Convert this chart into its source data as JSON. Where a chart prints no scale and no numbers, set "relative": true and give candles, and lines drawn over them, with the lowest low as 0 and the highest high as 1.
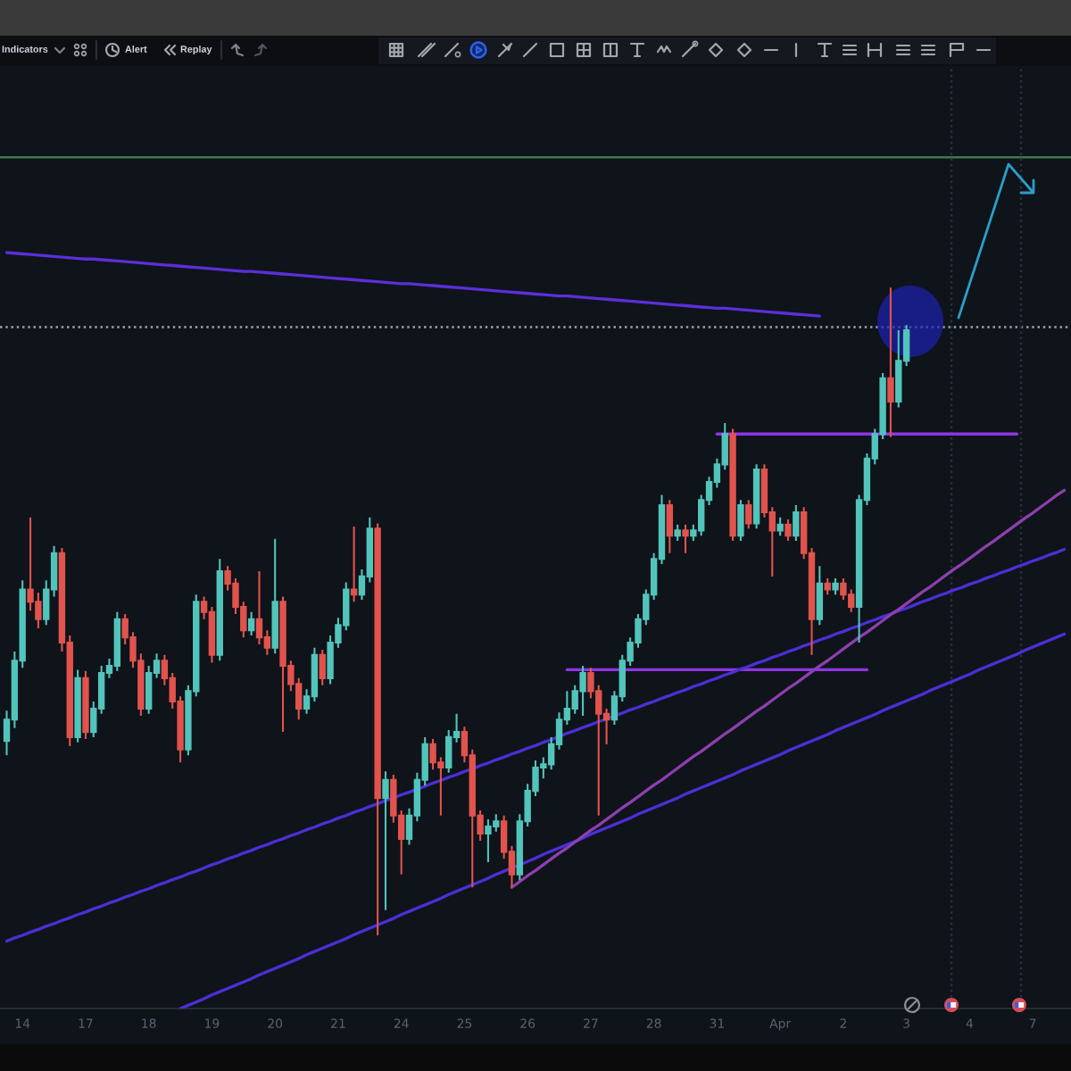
{
  "chart_data": {
    "type": "candlestick",
    "relative": true,
    "categories": [
      null,
      null,
      "14",
      null,
      null,
      null,
      null,
      null,
      null,
      null,
      "17",
      null,
      null,
      null,
      null,
      null,
      null,
      null,
      "18",
      null,
      null,
      null,
      null,
      null,
      null,
      null,
      "19",
      null,
      null,
      null,
      null,
      null,
      null,
      null,
      "20",
      null,
      null,
      null,
      null,
      null,
      null,
      null,
      "21",
      null,
      null,
      null,
      null,
      null,
      null,
      null,
      "24",
      null,
      null,
      null,
      null,
      null,
      null,
      null,
      "25",
      null,
      null,
      null,
      null,
      null,
      null,
      null,
      "26",
      null,
      null,
      null,
      null,
      null,
      null,
      null,
      "27",
      null,
      null,
      null,
      null,
      null,
      null,
      null,
      "28",
      null,
      null,
      null,
      null,
      null,
      null,
      null,
      "31",
      null,
      null,
      null,
      null,
      null,
      null,
      null,
      "Apr",
      null,
      null,
      null,
      null,
      null,
      null,
      null,
      "2",
      null,
      null,
      null,
      null,
      null,
      null,
      null,
      "3",
      null,
      null,
      null,
      null,
      null,
      null,
      null,
      "4",
      null,
      null,
      null,
      null,
      null,
      null,
      null,
      "7",
      null,
      null,
      null,
      null
    ],
    "ohlc": [
      [
        0.3,
        0.347,
        0.278,
        0.333
      ],
      [
        0.333,
        0.438,
        0.32,
        0.424
      ],
      [
        0.424,
        0.548,
        0.413,
        0.534
      ],
      [
        0.534,
        0.645,
        0.501,
        0.515
      ],
      [
        0.515,
        0.529,
        0.474,
        0.488
      ],
      [
        0.488,
        0.548,
        0.479,
        0.534
      ],
      [
        0.534,
        0.601,
        0.523,
        0.59
      ],
      [
        0.59,
        0.598,
        0.438,
        0.452
      ],
      [
        0.452,
        0.463,
        0.292,
        0.306
      ],
      [
        0.306,
        0.41,
        0.298,
        0.397
      ],
      [
        0.397,
        0.408,
        0.303,
        0.314
      ],
      [
        0.314,
        0.361,
        0.306,
        0.35
      ],
      [
        0.35,
        0.416,
        0.342,
        0.405
      ],
      [
        0.405,
        0.427,
        0.397,
        0.416
      ],
      [
        0.416,
        0.499,
        0.408,
        0.488
      ],
      [
        0.488,
        0.496,
        0.449,
        0.46
      ],
      [
        0.46,
        0.468,
        0.413,
        0.424
      ],
      [
        0.424,
        0.435,
        0.339,
        0.35
      ],
      [
        0.35,
        0.416,
        0.342,
        0.405
      ],
      [
        0.405,
        0.435,
        0.397,
        0.424
      ],
      [
        0.424,
        0.433,
        0.386,
        0.397
      ],
      [
        0.397,
        0.405,
        0.35,
        0.361
      ],
      [
        0.361,
        0.369,
        0.267,
        0.287
      ],
      [
        0.287,
        0.386,
        0.278,
        0.377
      ],
      [
        0.377,
        0.526,
        0.369,
        0.515
      ],
      [
        0.515,
        0.523,
        0.488,
        0.499
      ],
      [
        0.499,
        0.507,
        0.421,
        0.433
      ],
      [
        0.433,
        0.581,
        0.424,
        0.562
      ],
      [
        0.562,
        0.57,
        0.532,
        0.543
      ],
      [
        0.543,
        0.551,
        0.496,
        0.507
      ],
      [
        0.507,
        0.515,
        0.46,
        0.471
      ],
      [
        0.471,
        0.499,
        0.463,
        0.488
      ],
      [
        0.488,
        0.562,
        0.449,
        0.46
      ],
      [
        0.46,
        0.471,
        0.433,
        0.444
      ],
      [
        0.444,
        0.612,
        0.435,
        0.515
      ],
      [
        0.515,
        0.523,
        0.314,
        0.416
      ],
      [
        0.416,
        0.424,
        0.377,
        0.388
      ],
      [
        0.388,
        0.397,
        0.333,
        0.35
      ],
      [
        0.35,
        0.38,
        0.342,
        0.369
      ],
      [
        0.369,
        0.444,
        0.361,
        0.433
      ],
      [
        0.433,
        0.441,
        0.386,
        0.397
      ],
      [
        0.397,
        0.463,
        0.388,
        0.452
      ],
      [
        0.452,
        0.49,
        0.444,
        0.479
      ],
      [
        0.479,
        0.545,
        0.471,
        0.534
      ],
      [
        0.534,
        0.631,
        0.515,
        0.526
      ],
      [
        0.526,
        0.565,
        0.518,
        0.554
      ],
      [
        0.554,
        0.645,
        0.545,
        0.628
      ],
      [
        0.628,
        0.636,
        0,
        0.212
      ],
      [
        0.212,
        0.253,
        0.039,
        0.24
      ],
      [
        0.24,
        0.248,
        0.174,
        0.185
      ],
      [
        0.185,
        0.193,
        0.094,
        0.149
      ],
      [
        0.149,
        0.196,
        0.14,
        0.185
      ],
      [
        0.185,
        0.251,
        0.176,
        0.24
      ],
      [
        0.24,
        0.306,
        0.231,
        0.295
      ],
      [
        0.295,
        0.303,
        0.256,
        0.267
      ],
      [
        0.267,
        0.275,
        0.185,
        0.259
      ],
      [
        0.259,
        0.317,
        0.251,
        0.306
      ],
      [
        0.306,
        0.342,
        0.298,
        0.314
      ],
      [
        0.314,
        0.322,
        0.267,
        0.278
      ],
      [
        0.278,
        0.287,
        0.074,
        0.185
      ],
      [
        0.185,
        0.193,
        0.146,
        0.157
      ],
      [
        0.157,
        0.179,
        0.113,
        0.168
      ],
      [
        0.168,
        0.187,
        0.16,
        0.176
      ],
      [
        0.176,
        0.185,
        0.118,
        0.129
      ],
      [
        0.129,
        0.138,
        0.074,
        0.094
      ],
      [
        0.094,
        0.187,
        0.085,
        0.176
      ],
      [
        0.176,
        0.234,
        0.168,
        0.223
      ],
      [
        0.223,
        0.27,
        0.215,
        0.259
      ],
      [
        0.259,
        0.275,
        0.242,
        0.264
      ],
      [
        0.264,
        0.306,
        0.256,
        0.295
      ],
      [
        0.295,
        0.344,
        0.287,
        0.333
      ],
      [
        0.333,
        0.377,
        0.325,
        0.35
      ],
      [
        0.35,
        0.386,
        0.342,
        0.377
      ],
      [
        0.377,
        0.416,
        0.339,
        0.405
      ],
      [
        0.405,
        0.413,
        0.366,
        0.377
      ],
      [
        0.377,
        0.386,
        0.185,
        0.342
      ],
      [
        0.342,
        0.35,
        0.295,
        0.333
      ],
      [
        0.333,
        0.377,
        0.325,
        0.369
      ],
      [
        0.369,
        0.433,
        0.361,
        0.424
      ],
      [
        0.424,
        0.46,
        0.416,
        0.452
      ],
      [
        0.452,
        0.496,
        0.444,
        0.488
      ],
      [
        0.488,
        0.534,
        0.479,
        0.526
      ],
      [
        0.526,
        0.59,
        0.518,
        0.581
      ],
      [
        0.581,
        0.68,
        0.573,
        0.664
      ],
      [
        0.664,
        0.672,
        0.59,
        0.617
      ],
      [
        0.617,
        0.634,
        0.609,
        0.625
      ],
      [
        0.625,
        0.634,
        0.59,
        0.617
      ],
      [
        0.617,
        0.634,
        0.609,
        0.625
      ],
      [
        0.625,
        0.68,
        0.617,
        0.672
      ],
      [
        0.672,
        0.708,
        0.664,
        0.7
      ],
      [
        0.7,
        0.736,
        0.691,
        0.727
      ],
      [
        0.727,
        0.791,
        0.719,
        0.774
      ],
      [
        0.774,
        0.782,
        0.609,
        0.617
      ],
      [
        0.617,
        0.672,
        0.609,
        0.664
      ],
      [
        0.664,
        0.672,
        0.628,
        0.636
      ],
      [
        0.636,
        0.727,
        0.628,
        0.719
      ],
      [
        0.719,
        0.727,
        0.645,
        0.653
      ],
      [
        0.653,
        0.661,
        0.554,
        0.625
      ],
      [
        0.625,
        0.645,
        0.617,
        0.634
      ],
      [
        0.634,
        0.642,
        0.609,
        0.617
      ],
      [
        0.617,
        0.664,
        0.609,
        0.653
      ],
      [
        0.653,
        0.661,
        0.581,
        0.59
      ],
      [
        0.59,
        0.598,
        0.433,
        0.488
      ],
      [
        0.488,
        0.57,
        0.479,
        0.543
      ],
      [
        0.543,
        0.551,
        0.526,
        0.534
      ],
      [
        0.534,
        0.551,
        0.526,
        0.543
      ],
      [
        0.543,
        0.551,
        0.518,
        0.526
      ],
      [
        0.526,
        0.534,
        0.499,
        0.507
      ],
      [
        0.507,
        0.68,
        0.452,
        0.672
      ],
      [
        0.672,
        0.744,
        0.664,
        0.736
      ],
      [
        0.736,
        0.782,
        0.727,
        0.774
      ],
      [
        0.774,
        0.868,
        0.766,
        0.86
      ],
      [
        0.86,
        1,
        0.769,
        0.824
      ],
      [
        0.824,
        0.934,
        0.815,
        0.887
      ],
      [
        0.887,
        0.942,
        0.879,
        0.934
      ],
      null,
      null,
      null,
      null,
      null,
      null,
      null,
      null,
      null,
      null,
      null,
      null,
      null,
      null,
      null,
      null,
      null,
      null,
      null,
      null
    ],
    "series": [
      {
        "type": "line",
        "color": "#5b2fd9",
        "values": [
          1.054,
          1.053,
          1.052,
          1.051,
          1.05,
          1.049,
          1.048,
          1.047,
          1.046,
          1.045,
          1.044,
          1.044,
          1.043,
          1.042,
          1.041,
          1.04,
          1.039,
          1.038,
          1.037,
          1.036,
          1.035,
          1.034,
          1.033,
          1.032,
          1.031,
          1.03,
          1.029,
          1.028,
          1.027,
          1.026,
          1.025,
          1.025,
          1.024,
          1.023,
          1.022,
          1.021,
          1.02,
          1.019,
          1.018,
          1.017,
          1.016,
          1.015,
          1.014,
          1.013,
          1.012,
          1.011,
          1.01,
          1.009,
          1.008,
          1.007,
          1.006,
          1.006,
          1.005,
          1.004,
          1.003,
          1.002,
          1.001,
          1.0,
          0.999,
          0.998,
          0.997,
          0.996,
          0.995,
          0.994,
          0.993,
          0.992,
          0.991,
          0.99,
          0.989,
          0.988,
          0.987,
          0.987,
          0.986,
          0.985,
          0.984,
          0.983,
          0.982,
          0.981,
          0.98,
          0.979,
          0.978,
          0.977,
          0.976,
          0.975,
          0.974,
          0.973,
          0.972,
          0.971,
          0.97,
          0.969,
          0.968,
          0.968,
          0.967,
          0.966,
          0.965,
          0.964,
          0.963,
          0.962,
          0.961,
          0.96,
          0.959,
          0.958,
          0.957,
          0.956,
          null,
          null,
          null,
          null,
          null,
          null,
          null,
          null,
          null,
          null,
          null,
          null,
          null,
          null,
          null,
          null,
          null,
          null,
          null,
          null,
          null,
          null,
          null,
          null,
          null,
          null,
          null,
          null,
          null,
          null,
          null
        ]
      },
      {
        "type": "line",
        "color": "#8e35e6",
        "values": [
          null,
          null,
          null,
          null,
          null,
          null,
          null,
          null,
          null,
          null,
          null,
          null,
          null,
          null,
          null,
          null,
          null,
          null,
          null,
          null,
          null,
          null,
          null,
          null,
          null,
          null,
          null,
          null,
          null,
          null,
          null,
          null,
          null,
          null,
          null,
          null,
          null,
          null,
          null,
          null,
          null,
          null,
          null,
          null,
          null,
          null,
          null,
          null,
          null,
          null,
          null,
          null,
          null,
          null,
          null,
          null,
          null,
          null,
          null,
          null,
          null,
          null,
          null,
          null,
          null,
          null,
          null,
          null,
          null,
          null,
          null,
          null,
          null,
          null,
          null,
          null,
          null,
          null,
          null,
          null,
          null,
          null,
          null,
          null,
          null,
          null,
          null,
          null,
          null,
          null,
          0.774,
          0.774,
          0.774,
          0.774,
          0.774,
          0.774,
          0.774,
          0.774,
          0.774,
          0.774,
          0.774,
          0.774,
          0.774,
          0.774,
          0.774,
          0.774,
          0.774,
          0.774,
          0.774,
          0.774,
          0.774,
          0.774,
          0.774,
          0.774,
          0.774,
          0.774,
          0.774,
          0.774,
          0.774,
          0.774,
          0.774,
          0.774,
          0.774,
          0.774,
          0.774,
          0.774,
          0.774,
          0.774,
          0.774,
          null,
          null,
          null,
          null,
          null,
          null
        ]
      },
      {
        "type": "line",
        "color": "#8e35e6",
        "values": [
          null,
          null,
          null,
          null,
          null,
          null,
          null,
          null,
          null,
          null,
          null,
          null,
          null,
          null,
          null,
          null,
          null,
          null,
          null,
          null,
          null,
          null,
          null,
          null,
          null,
          null,
          null,
          null,
          null,
          null,
          null,
          null,
          null,
          null,
          null,
          null,
          null,
          null,
          null,
          null,
          null,
          null,
          null,
          null,
          null,
          null,
          null,
          null,
          null,
          null,
          null,
          null,
          null,
          null,
          null,
          null,
          null,
          null,
          null,
          null,
          null,
          null,
          null,
          null,
          null,
          null,
          null,
          null,
          null,
          null,
          null,
          0.41,
          0.41,
          0.41,
          0.41,
          0.41,
          0.41,
          0.41,
          0.41,
          0.41,
          0.41,
          0.41,
          0.41,
          0.41,
          0.41,
          0.41,
          0.41,
          0.41,
          0.41,
          0.41,
          0.41,
          0.41,
          0.41,
          0.41,
          0.41,
          0.41,
          0.41,
          0.41,
          0.41,
          0.41,
          0.41,
          0.41,
          0.41,
          0.41,
          0.41,
          0.41,
          0.41,
          0.41,
          0.41,
          0.41,
          null,
          null,
          null,
          null,
          null,
          null,
          null,
          null,
          null,
          null,
          null,
          null,
          null,
          null,
          null,
          null,
          null,
          null,
          null,
          null,
          null,
          null,
          null,
          null,
          null
        ]
      },
      {
        "type": "line",
        "color": "#4b2fd6",
        "values": [
          -0.009,
          -0.004,
          0.0,
          0.005,
          0.009,
          0.014,
          0.018,
          0.023,
          0.027,
          0.032,
          0.036,
          0.041,
          0.045,
          0.05,
          0.054,
          0.059,
          0.063,
          0.068,
          0.072,
          0.077,
          0.081,
          0.086,
          0.09,
          0.095,
          0.099,
          0.104,
          0.109,
          0.113,
          0.118,
          0.122,
          0.127,
          0.131,
          0.136,
          0.14,
          0.145,
          0.149,
          0.154,
          0.158,
          0.163,
          0.167,
          0.172,
          0.176,
          0.181,
          0.185,
          0.19,
          0.194,
          0.199,
          0.203,
          0.208,
          0.212,
          0.217,
          0.221,
          0.226,
          0.23,
          0.235,
          0.239,
          0.244,
          0.248,
          0.253,
          0.257,
          0.262,
          0.266,
          0.271,
          0.275,
          0.28,
          0.284,
          0.289,
          0.293,
          0.298,
          0.302,
          0.307,
          0.312,
          0.316,
          0.321,
          0.325,
          0.33,
          0.334,
          0.339,
          0.343,
          0.348,
          0.352,
          0.357,
          0.361,
          0.366,
          0.37,
          0.375,
          0.379,
          0.384,
          0.388,
          0.393,
          0.397,
          0.402,
          0.406,
          0.411,
          0.415,
          0.42,
          0.424,
          0.429,
          0.433,
          0.438,
          0.442,
          0.447,
          0.451,
          0.456,
          0.46,
          0.465,
          0.469,
          0.474,
          0.478,
          0.483,
          0.487,
          0.492,
          0.496,
          0.501,
          0.505,
          0.51,
          0.515,
          0.519,
          0.524,
          0.528,
          0.533,
          0.537,
          0.542,
          0.546,
          0.551,
          0.555,
          0.56,
          0.564,
          0.569,
          0.573,
          0.578,
          0.582,
          0.587,
          0.591,
          0.596
        ]
      },
      {
        "type": "line",
        "color": "#4b2fd6",
        "values": [
          null,
          null,
          null,
          null,
          null,
          null,
          null,
          null,
          null,
          null,
          null,
          null,
          null,
          null,
          null,
          null,
          null,
          null,
          null,
          null,
          null,
          null,
          -0.113,
          -0.108,
          -0.103,
          -0.098,
          -0.092,
          -0.087,
          -0.082,
          -0.077,
          -0.072,
          -0.067,
          -0.061,
          -0.056,
          -0.051,
          -0.046,
          -0.041,
          -0.036,
          -0.03,
          -0.025,
          -0.02,
          -0.015,
          -0.01,
          -0.005,
          0.001,
          0.006,
          0.011,
          0.016,
          0.021,
          0.026,
          0.032,
          0.037,
          0.042,
          0.047,
          0.052,
          0.057,
          0.063,
          0.068,
          0.073,
          0.078,
          0.083,
          0.088,
          0.094,
          0.099,
          0.104,
          0.109,
          0.114,
          0.119,
          0.125,
          0.13,
          0.135,
          0.14,
          0.145,
          0.15,
          0.156,
          0.161,
          0.166,
          0.171,
          0.176,
          0.181,
          0.187,
          0.192,
          0.197,
          0.202,
          0.207,
          0.212,
          0.218,
          0.223,
          0.228,
          0.233,
          0.238,
          0.243,
          0.248,
          0.254,
          0.259,
          0.264,
          0.269,
          0.274,
          0.279,
          0.285,
          0.29,
          0.295,
          0.3,
          0.305,
          0.31,
          0.316,
          0.321,
          0.326,
          0.331,
          0.336,
          0.341,
          0.347,
          0.352,
          0.357,
          0.362,
          0.367,
          0.372,
          0.378,
          0.383,
          0.388,
          0.393,
          0.398,
          0.403,
          0.409,
          0.414,
          0.419,
          0.424,
          0.429,
          0.434,
          0.44,
          0.445,
          0.45,
          0.455,
          0.46,
          0.465
        ]
      },
      {
        "type": "line",
        "color": "#8d3fae",
        "values": [
          null,
          null,
          null,
          null,
          null,
          null,
          null,
          null,
          null,
          null,
          null,
          null,
          null,
          null,
          null,
          null,
          null,
          null,
          null,
          null,
          null,
          null,
          null,
          null,
          null,
          null,
          null,
          null,
          null,
          null,
          null,
          null,
          null,
          null,
          null,
          null,
          null,
          null,
          null,
          null,
          null,
          null,
          null,
          null,
          null,
          null,
          null,
          null,
          null,
          null,
          null,
          null,
          null,
          null,
          null,
          null,
          null,
          null,
          null,
          null,
          null,
          null,
          null,
          null,
          0.074,
          0.083,
          0.092,
          0.1,
          0.109,
          0.118,
          0.127,
          0.135,
          0.144,
          0.153,
          0.162,
          0.17,
          0.179,
          0.188,
          0.197,
          0.205,
          0.214,
          0.223,
          0.232,
          0.24,
          0.249,
          0.258,
          0.267,
          0.276,
          0.284,
          0.293,
          0.302,
          0.311,
          0.319,
          0.328,
          0.337,
          0.346,
          0.354,
          0.363,
          0.372,
          0.381,
          0.389,
          0.398,
          0.407,
          0.416,
          0.424,
          0.433,
          0.442,
          0.451,
          0.46,
          0.468,
          0.477,
          0.486,
          0.495,
          0.503,
          0.512,
          0.521,
          0.53,
          0.538,
          0.547,
          0.556,
          0.565,
          0.573,
          0.582,
          0.591,
          0.6,
          0.608,
          0.617,
          0.626,
          0.635,
          0.644,
          0.652,
          0.661,
          0.67,
          0.679,
          0.687
        ]
      }
    ],
    "ref_lines": [
      {
        "axis": "y",
        "value": 1.201,
        "color": "#3b7a4e",
        "line_style": "solid"
      },
      {
        "axis": "y",
        "value": 0.939,
        "color": "#9aa0a8",
        "line_style": "dotted"
      }
    ],
    "annotations": [
      "Indicators",
      "Alert",
      "Replay"
    ]
  }
}
